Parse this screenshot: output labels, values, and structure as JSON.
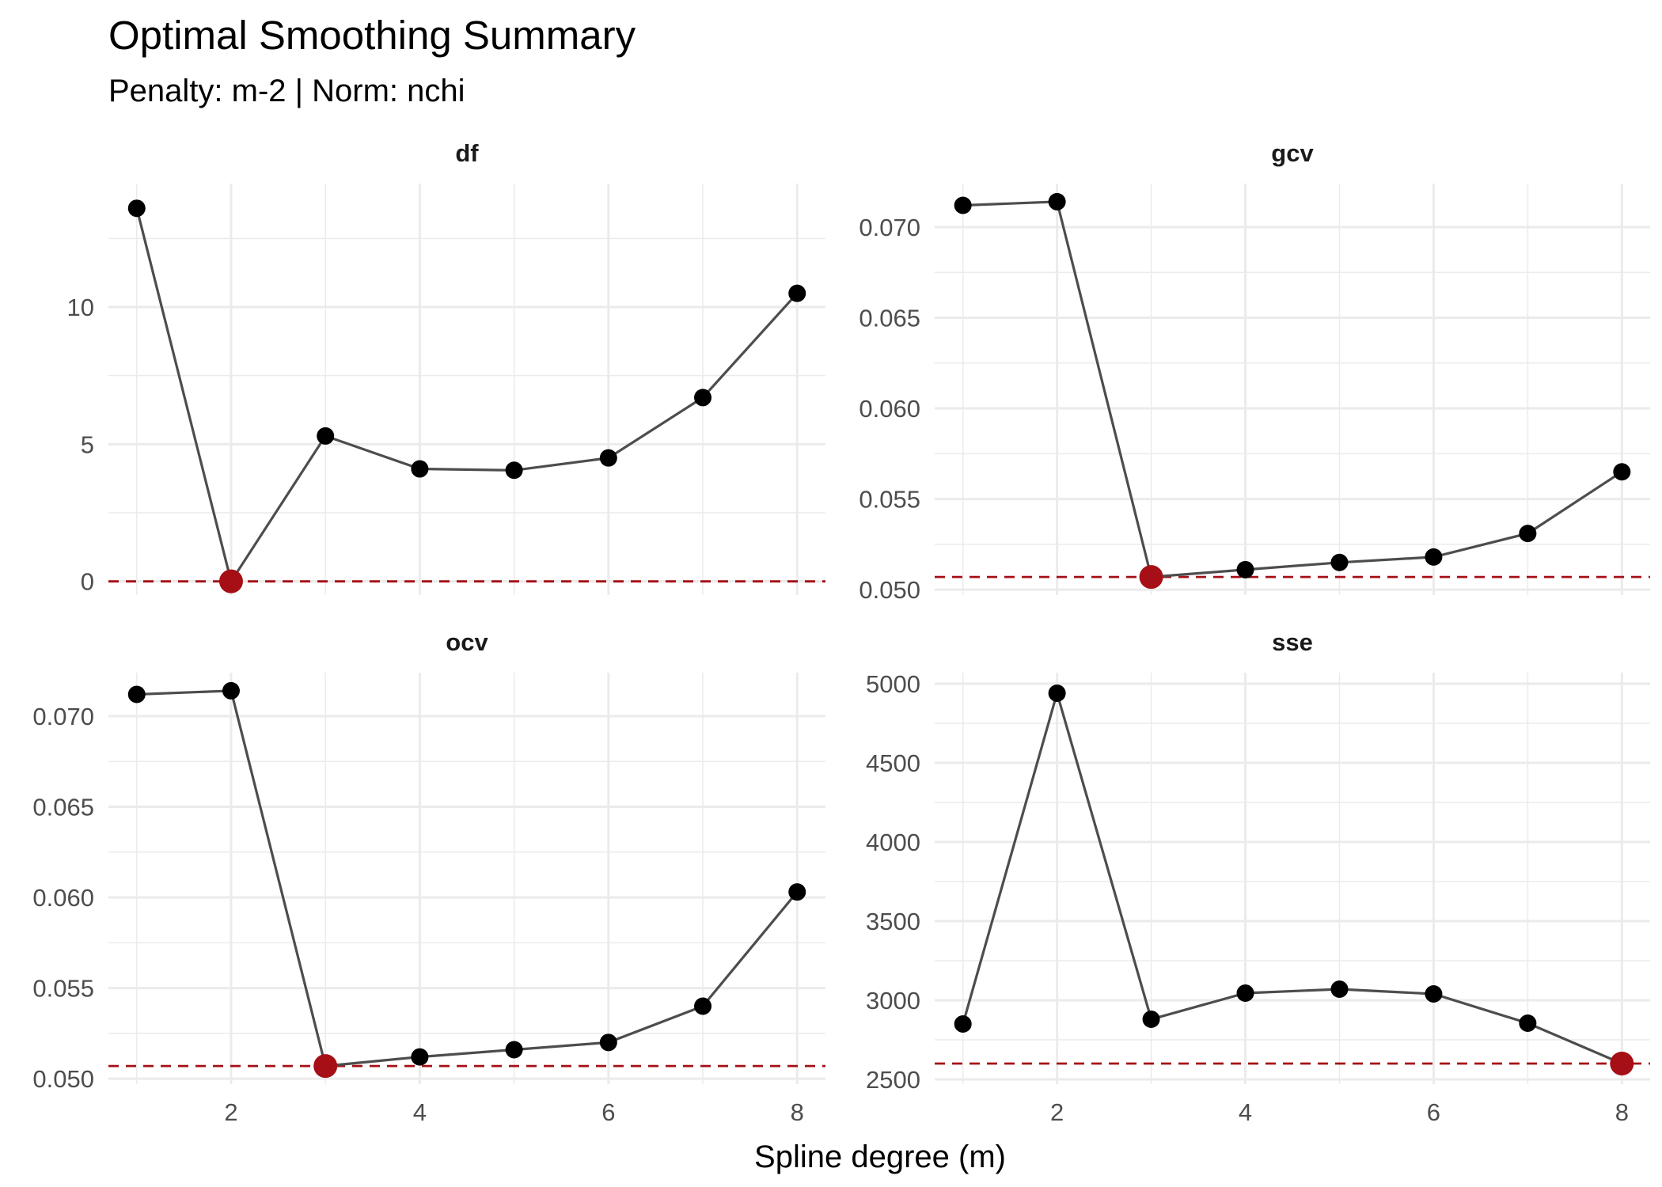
{
  "chart_data": {
    "type": "line",
    "title": "Optimal Smoothing Summary",
    "subtitle": "Penalty: m-2 | Norm: nchi",
    "xlabel": "Spline degree (m)",
    "colors": {
      "line": "#4d4d4d",
      "point": "#000000",
      "optimum": "#a50f15",
      "grid": "#ebebeb"
    },
    "x": [
      1,
      2,
      3,
      4,
      5,
      6,
      7,
      8
    ],
    "xlim": [
      0.7,
      8.3
    ],
    "x_ticks": [
      2,
      4,
      6,
      8
    ],
    "x_tick_labels": [
      "2",
      "4",
      "6",
      "8"
    ],
    "panels": [
      {
        "name": "df",
        "values": [
          13.6,
          0.0,
          5.3,
          4.1,
          4.05,
          4.5,
          6.7,
          10.5
        ],
        "ylim": [
          -0.5,
          14.5
        ],
        "y_ticks": [
          0,
          5,
          10
        ],
        "y_tick_labels": [
          "0",
          "5",
          "10"
        ],
        "optimum_index": 1,
        "optimum_value": 0.0
      },
      {
        "name": "gcv",
        "values": [
          0.0712,
          0.0714,
          0.0507,
          0.0511,
          0.0515,
          0.0518,
          0.0531,
          0.0565
        ],
        "ylim": [
          0.0497,
          0.0724
        ],
        "y_ticks": [
          0.05,
          0.055,
          0.06,
          0.065,
          0.07
        ],
        "y_tick_labels": [
          "0.050",
          "0.055",
          "0.060",
          "0.065",
          "0.070"
        ],
        "optimum_index": 2,
        "optimum_value": 0.0507
      },
      {
        "name": "ocv",
        "values": [
          0.0712,
          0.0714,
          0.0507,
          0.0512,
          0.0516,
          0.052,
          0.054,
          0.0603
        ],
        "ylim": [
          0.0497,
          0.0724
        ],
        "y_ticks": [
          0.05,
          0.055,
          0.06,
          0.065,
          0.07
        ],
        "y_tick_labels": [
          "0.050",
          "0.055",
          "0.060",
          "0.065",
          "0.070"
        ],
        "optimum_index": 2,
        "optimum_value": 0.0507
      },
      {
        "name": "sse",
        "values": [
          2850,
          4940,
          2880,
          3045,
          3070,
          3040,
          2855,
          2600
        ],
        "ylim": [
          2470,
          5070
        ],
        "y_ticks": [
          2500,
          3000,
          3500,
          4000,
          4500,
          5000
        ],
        "y_tick_labels": [
          "2500",
          "3000",
          "3500",
          "4000",
          "4500",
          "5000"
        ],
        "optimum_index": 7,
        "optimum_value": 2600
      }
    ]
  }
}
